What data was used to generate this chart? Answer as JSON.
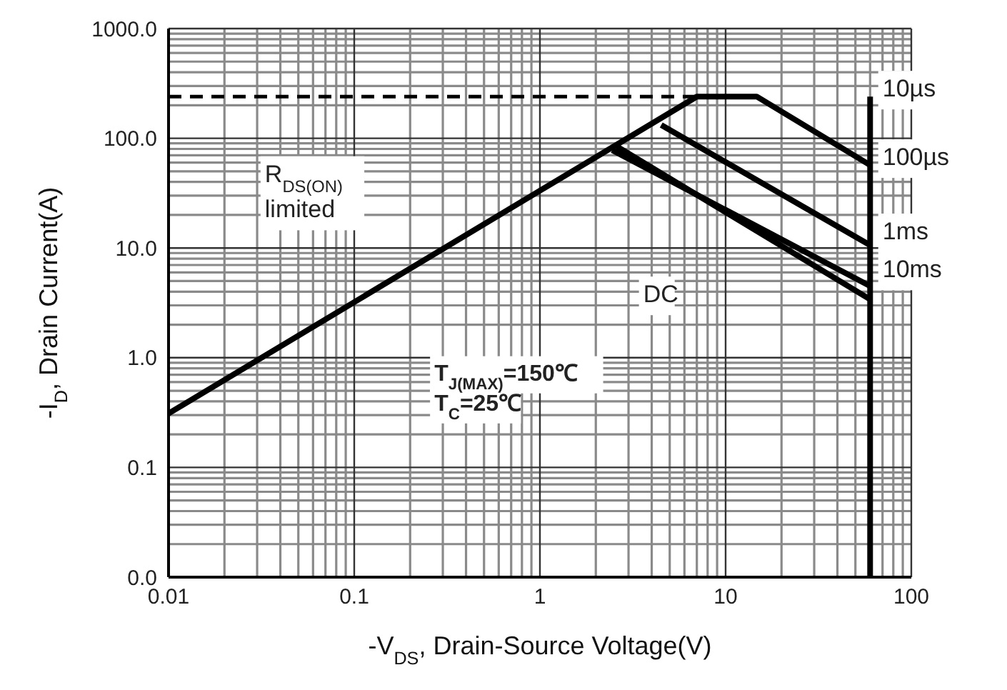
{
  "chart_data": {
    "type": "line",
    "xlabel": "-V$_{DS}$, Drain-Source Voltage(V)",
    "ylabel": "-I$_{D}$, Drain Current(A)",
    "log": "xy",
    "grid": true,
    "marker": "none",
    "xlim": [
      0.01,
      100
    ],
    "xticks": [
      0.01,
      0.1,
      1,
      10,
      100
    ],
    "ylim": [
      0.01,
      1000
    ],
    "yticks": [
      {
        "value": 0.01,
        "label": "0.0"
      },
      {
        "value": 0.1,
        "label": "0.1"
      },
      {
        "value": 1,
        "label": "1.0"
      },
      {
        "value": 10,
        "label": "10.0"
      },
      {
        "value": 100,
        "label": "100.0"
      },
      {
        "value": 1000,
        "label": "1000.0"
      }
    ],
    "series": [
      {
        "color": "#000000",
        "x": [
          0.01,
          7
        ],
        "values": [
          240,
          240
        ],
        "line_style": "dashed"
      },
      {
        "color": "#000000",
        "x": [
          0.01,
          7,
          14.7,
          60
        ],
        "values": [
          0.31,
          240,
          240,
          57
        ],
        "line_style": "solid"
      },
      {
        "color": "#000000",
        "x": [
          4.5,
          60
        ],
        "values": [
          132,
          10.6
        ],
        "line_style": "solid"
      },
      {
        "color": "#000000",
        "x": [
          2.45,
          60
        ],
        "values": [
          78,
          4.5
        ],
        "line_style": "solid"
      },
      {
        "color": "#000000",
        "x": [
          2.6,
          60
        ],
        "values": [
          84,
          3.4
        ],
        "line_style": "solid"
      },
      {
        "color": "#000000",
        "x": [
          60,
          60
        ],
        "values": [
          240,
          0.01
        ],
        "line_style": "solid"
      }
    ],
    "annotations": [
      "10µs",
      "100µs",
      "1ms",
      "10ms",
      "DC",
      "R$_{DS(ON)}$",
      "limited",
      "T$_{J(MAX)}$=150℃",
      "T$_{C}$=25℃"
    ]
  }
}
